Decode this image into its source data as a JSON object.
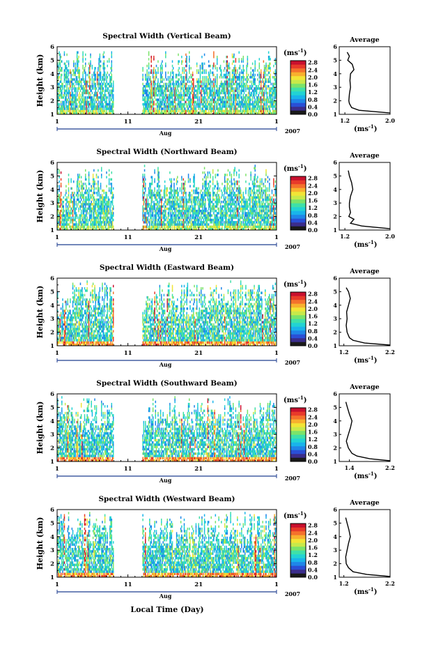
{
  "figure": {
    "x_axis_title": "Local Time (Day)",
    "month_label": "Aug",
    "year_label": "2007",
    "x_tick_labels": [
      "1",
      "11",
      "21",
      "1"
    ],
    "unit_label": "(ms",
    "unit_exponent": "-1",
    "average_title": "Average",
    "average_unit": "(ms",
    "height_label": "Height (km)"
  },
  "chart_data": [
    {
      "type": "heatmap",
      "title": "Spectral Width (Vertical Beam)",
      "ylabel": "Height (km)",
      "xlabel": "Aug",
      "x_range_days": [
        1,
        32
      ],
      "y_range_km": [
        1,
        6
      ],
      "y_ticks": [
        1,
        2,
        3,
        4,
        5,
        6
      ],
      "data_gap_days": [
        9,
        13
      ],
      "colorbar": {
        "ticks": [
          "0.0",
          "0.4",
          "0.8",
          "1.2",
          "1.6",
          "2.0",
          "2.4",
          "2.8"
        ],
        "range": [
          0.0,
          2.9
        ]
      },
      "average_profile": {
        "title": "Average",
        "x_ticks": [
          "1.2",
          "2.0"
        ],
        "x_range": [
          1.1,
          2.0
        ],
        "height_km": [
          1.1,
          1.3,
          1.5,
          1.8,
          2.0,
          2.5,
          3.0,
          3.5,
          4.0,
          4.3,
          4.7,
          5.0,
          5.3,
          5.6
        ],
        "values": [
          2.0,
          1.45,
          1.32,
          1.28,
          1.27,
          1.28,
          1.3,
          1.29,
          1.3,
          1.36,
          1.33,
          1.25,
          1.28,
          1.24
        ]
      }
    },
    {
      "type": "heatmap",
      "title": "Spectral Width (Northward Beam)",
      "ylabel": "Height (km)",
      "xlabel": "Aug",
      "x_range_days": [
        1,
        32
      ],
      "y_range_km": [
        1,
        6
      ],
      "y_ticks": [
        1,
        2,
        3,
        4,
        5,
        6
      ],
      "data_gap_days": [
        9,
        13
      ],
      "colorbar": {
        "ticks": [
          "0.0",
          "0.4",
          "0.8",
          "1.2",
          "1.6",
          "2.0",
          "2.4",
          "2.8"
        ],
        "range": [
          0.0,
          2.9
        ]
      },
      "average_profile": {
        "title": "Average",
        "x_ticks": [
          "1.2",
          "2.0"
        ],
        "x_range": [
          1.1,
          2.0
        ],
        "height_km": [
          1.1,
          1.3,
          1.5,
          1.8,
          2.0,
          2.3,
          2.7,
          3.0,
          3.5,
          4.0,
          4.5,
          5.0,
          5.4
        ],
        "values": [
          2.0,
          1.5,
          1.3,
          1.36,
          1.27,
          1.3,
          1.28,
          1.28,
          1.3,
          1.34,
          1.32,
          1.28,
          1.26
        ]
      }
    },
    {
      "type": "heatmap",
      "title": "Spectral Width (Eastward Beam)",
      "ylabel": "Height (km)",
      "xlabel": "Aug",
      "x_range_days": [
        1,
        32
      ],
      "y_range_km": [
        1,
        6
      ],
      "y_ticks": [
        1,
        2,
        3,
        4,
        5,
        6
      ],
      "data_gap_days": [
        9,
        13
      ],
      "colorbar": {
        "ticks": [
          "0.0",
          "0.4",
          "0.8",
          "1.2",
          "1.6",
          "2.0",
          "2.4",
          "2.8"
        ],
        "range": [
          0.0,
          2.9
        ]
      },
      "average_profile": {
        "title": "Average",
        "x_ticks": [
          "1.2",
          "2.2"
        ],
        "x_range": [
          1.1,
          2.2
        ],
        "height_km": [
          1.05,
          1.2,
          1.4,
          1.6,
          2.0,
          2.5,
          3.0,
          3.5,
          4.0,
          4.5,
          5.0,
          5.3
        ],
        "values": [
          2.2,
          1.65,
          1.4,
          1.32,
          1.27,
          1.25,
          1.27,
          1.26,
          1.3,
          1.34,
          1.3,
          1.25
        ]
      }
    },
    {
      "type": "heatmap",
      "title": "Spectral Width (Southward Beam)",
      "ylabel": "Height (km)",
      "xlabel": "Aug",
      "x_range_days": [
        1,
        32
      ],
      "y_range_km": [
        1,
        6
      ],
      "y_ticks": [
        1,
        2,
        3,
        4,
        5,
        6
      ],
      "data_gap_days": [
        9,
        13
      ],
      "colorbar": {
        "ticks": [
          "0.0",
          "0.4",
          "0.8",
          "1.2",
          "1.6",
          "2.0",
          "2.4",
          "2.8"
        ],
        "range": [
          0.0,
          2.9
        ]
      },
      "average_profile": {
        "title": "Average",
        "x_ticks": [
          "1.4",
          "2.2"
        ],
        "x_range": [
          1.2,
          2.2
        ],
        "height_km": [
          1.05,
          1.2,
          1.4,
          1.6,
          2.0,
          2.5,
          3.0,
          3.5,
          4.0,
          4.5,
          5.0,
          5.4
        ],
        "values": [
          2.2,
          1.8,
          1.55,
          1.45,
          1.38,
          1.34,
          1.38,
          1.42,
          1.45,
          1.4,
          1.36,
          1.33
        ]
      }
    },
    {
      "type": "heatmap",
      "title": "Spectral Width (Westward Beam)",
      "ylabel": "Height (km)",
      "xlabel": "Aug",
      "x_range_days": [
        1,
        32
      ],
      "y_range_km": [
        1,
        6
      ],
      "y_ticks": [
        1,
        2,
        3,
        4,
        5,
        6
      ],
      "data_gap_days": [
        9,
        13
      ],
      "colorbar": {
        "ticks": [
          "0.0",
          "0.4",
          "0.8",
          "1.2",
          "1.6",
          "2.0",
          "2.4",
          "2.8"
        ],
        "range": [
          0.0,
          2.9
        ]
      },
      "average_profile": {
        "title": "Average",
        "x_ticks": [
          "1.2",
          "2.2"
        ],
        "x_range": [
          1.1,
          2.2
        ],
        "height_km": [
          1.05,
          1.2,
          1.4,
          1.7,
          2.0,
          2.5,
          3.0,
          3.5,
          4.0,
          4.5,
          5.0,
          5.4
        ],
        "values": [
          2.2,
          1.7,
          1.4,
          1.3,
          1.25,
          1.24,
          1.27,
          1.3,
          1.34,
          1.31,
          1.27,
          1.24
        ]
      }
    }
  ]
}
